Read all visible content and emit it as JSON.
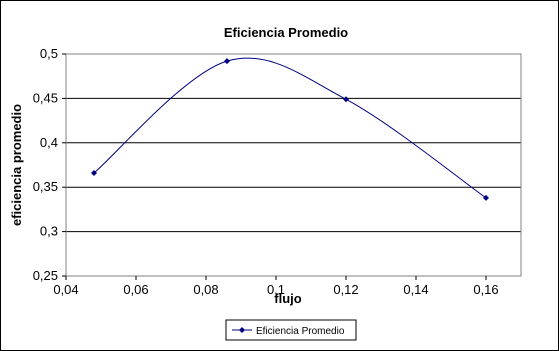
{
  "chart_data": {
    "type": "line",
    "title": "Eficiencia Promedio",
    "xlabel": "flujo",
    "ylabel": "eficiencia promedio",
    "xlim": [
      0.04,
      0.17
    ],
    "ylim": [
      0.25,
      0.5
    ],
    "x_ticks": [
      "0,04",
      "0,06",
      "0,08",
      "0,1",
      "0,12",
      "0,14",
      "0,16"
    ],
    "y_ticks": [
      "0,25",
      "0,3",
      "0,35",
      "0,4",
      "0,45",
      "0,5"
    ],
    "grid": "horizontal",
    "legend_position": "bottom",
    "smooth": true,
    "series": [
      {
        "name": "Eficiencia Promedio",
        "color": "#000080",
        "marker": "diamond",
        "x": [
          0.048,
          0.086,
          0.12,
          0.16
        ],
        "y": [
          0.366,
          0.492,
          0.449,
          0.338
        ]
      }
    ]
  }
}
